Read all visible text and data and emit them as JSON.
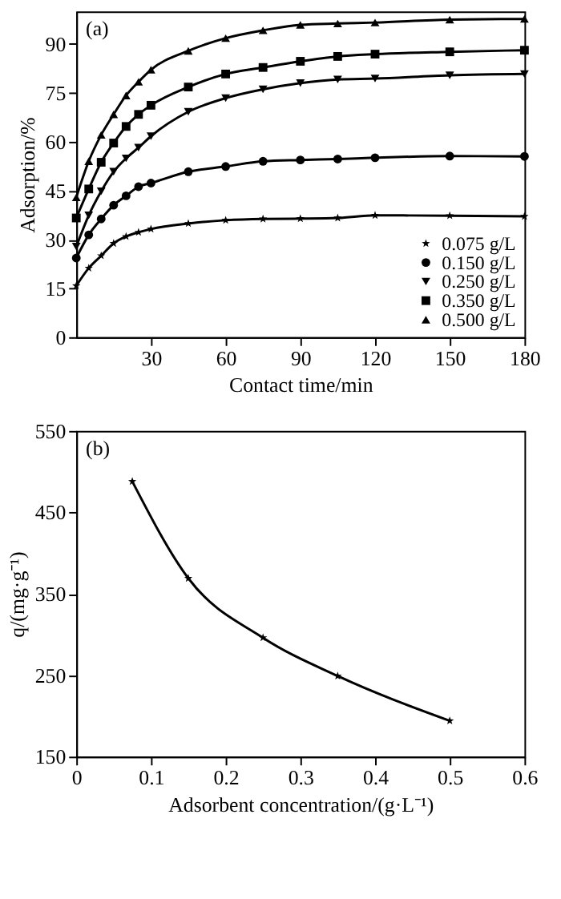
{
  "chart_data": [
    {
      "type": "line",
      "annotations": [
        "(a)"
      ],
      "xlabel": "Contact time/min",
      "ylabel": "Adsorption/%",
      "x": [
        0,
        5,
        10,
        15,
        20,
        25,
        30,
        45,
        60,
        75,
        90,
        105,
        120,
        150,
        180
      ],
      "xlim": [
        0,
        180
      ],
      "xticks": [
        30,
        60,
        90,
        120,
        150,
        180
      ],
      "ylim": [
        0,
        100
      ],
      "yticks": [
        0,
        15,
        30,
        45,
        60,
        75,
        90
      ],
      "legend": "bottom right",
      "line_style": "solid",
      "series": [
        {
          "name": "0.075 g/L",
          "color": "#000000",
          "marker": "star",
          "values": [
            15.8,
            21.2,
            25,
            28.8,
            30.9,
            32.2,
            33.2,
            34.9,
            35.9,
            36.3,
            36.4,
            36.6,
            37.4,
            37.3,
            37.1
          ]
        },
        {
          "name": "0.150 g/L",
          "color": "#000000",
          "marker": "circle",
          "values": [
            24.3,
            31.4,
            36.3,
            40.5,
            43.4,
            46.2,
            47.3,
            50.8,
            52.4,
            54.0,
            54.4,
            54.7,
            55.1,
            55.6,
            55.5
          ]
        },
        {
          "name": "0.250 g/L",
          "color": "#000000",
          "marker": "triangle-down",
          "values": [
            27.8,
            37.4,
            44.8,
            50.8,
            54.9,
            58.2,
            61.7,
            69.2,
            73.4,
            76.1,
            78.0,
            79.1,
            79.4,
            80.4,
            80.8
          ]
        },
        {
          "name": "0.350 g/L",
          "color": "#000000",
          "marker": "square",
          "values": [
            36.6,
            45.5,
            53.7,
            59.6,
            64.7,
            68.4,
            71.2,
            76.8,
            80.8,
            82.8,
            84.7,
            86.2,
            86.9,
            87.6,
            88.1
          ]
        },
        {
          "name": "0.500 g/L",
          "color": "#000000",
          "marker": "triangle",
          "values": [
            42.9,
            54.0,
            62.1,
            68.4,
            74.2,
            78.4,
            82.1,
            87.9,
            91.8,
            94.2,
            95.9,
            96.3,
            96.6,
            97.5,
            97.7
          ]
        }
      ]
    },
    {
      "type": "line",
      "annotations": [
        "(b)"
      ],
      "xlabel": "Adsorbent concentration/(g·L⁻¹)",
      "ylabel": "q/(mg·g⁻¹)",
      "x": [
        0.075,
        0.15,
        0.25,
        0.35,
        0.5
      ],
      "xlim": [
        0,
        0.6
      ],
      "xticks": [
        0,
        0.1,
        0.2,
        0.3,
        0.4,
        0.5,
        0.6
      ],
      "ylim": [
        150,
        550
      ],
      "yticks": [
        150,
        250,
        350,
        450,
        550
      ],
      "marker": "star",
      "line_style": "solid",
      "series": [
        {
          "color": "#000000",
          "values": [
            488,
            369,
            296,
            249,
            194
          ]
        }
      ]
    }
  ]
}
